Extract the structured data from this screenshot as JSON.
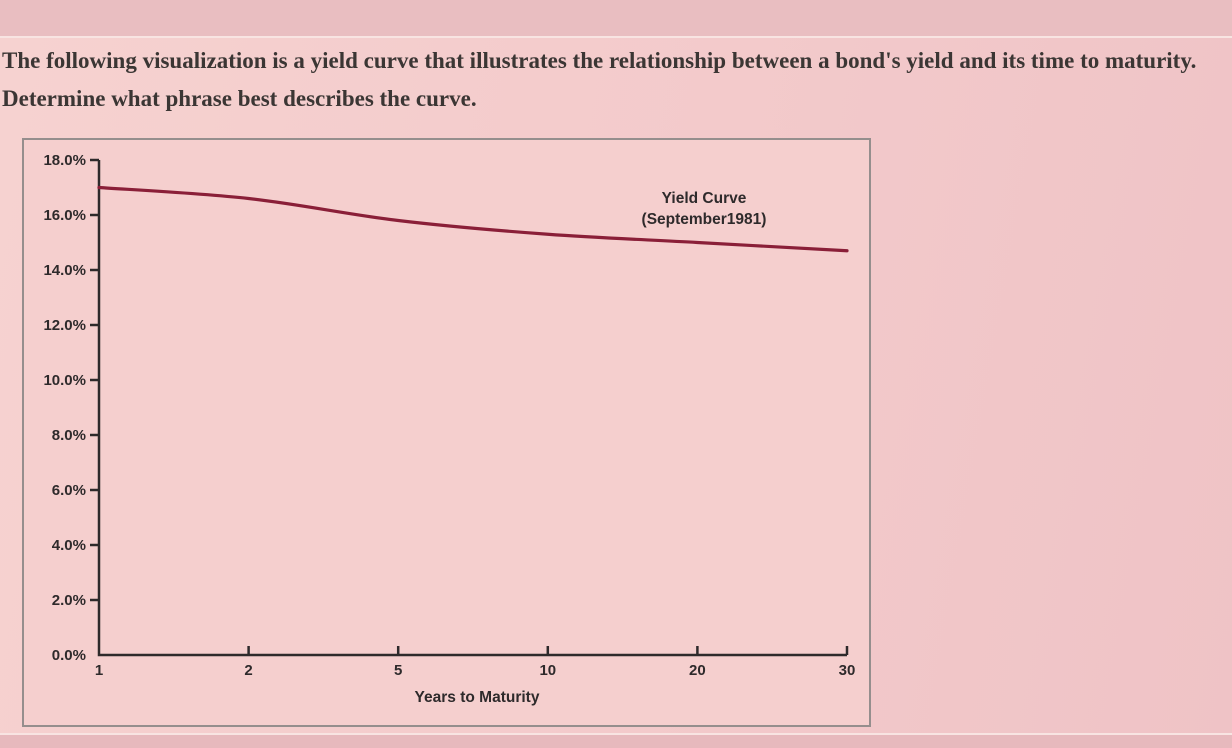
{
  "question": {
    "text": "The following visualization is a yield curve that illustrates the relationship between a bond's yield and its time to maturity. Determine what phrase best describes the curve."
  },
  "chart_data": {
    "type": "line",
    "title": "Yield Curve",
    "subtitle": "(September1981)",
    "xlabel": "Years to Maturity",
    "ylabel": "",
    "x_tick_labels": [
      "1",
      "2",
      "5",
      "10",
      "20",
      "30"
    ],
    "y_tick_labels": [
      "0.0%",
      "2.0%",
      "4.0%",
      "6.0%",
      "8.0%",
      "10.0%",
      "12.0%",
      "14.0%",
      "16.0%",
      "18.0%"
    ],
    "ylim": [
      0,
      18
    ],
    "x": [
      1,
      2,
      5,
      10,
      20,
      30
    ],
    "values": [
      17.0,
      16.6,
      15.8,
      15.3,
      15.0,
      14.7
    ],
    "line_color": "#8a1f38",
    "axis_color": "#2e2a2b",
    "legend_position": "inside-top-right",
    "grid": false
  }
}
